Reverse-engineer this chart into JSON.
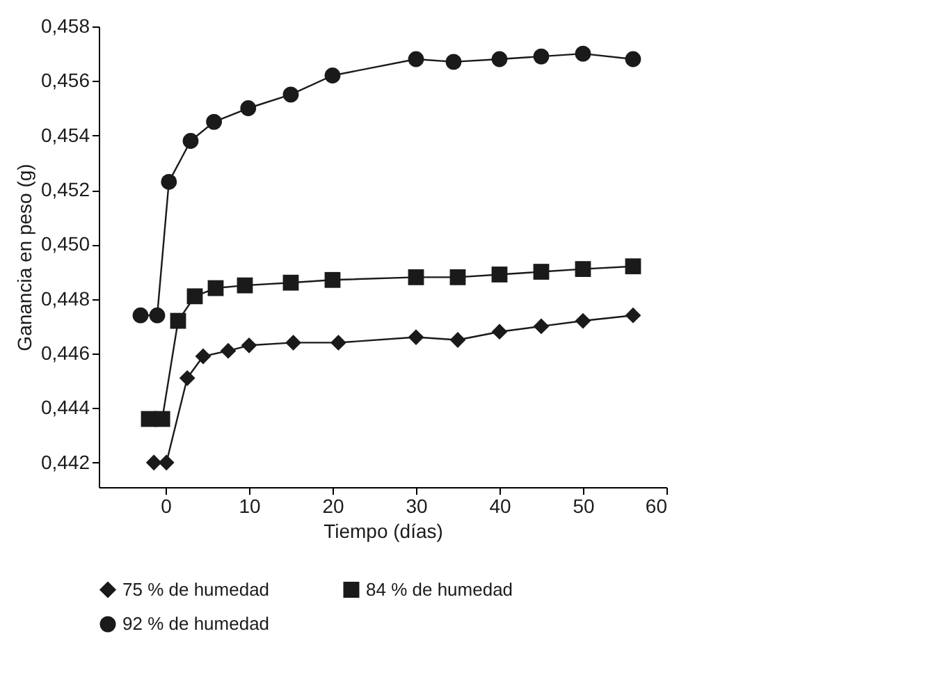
{
  "chart_data": {
    "type": "line",
    "xlabel": "Tiempo (días)",
    "ylabel": "Ganancia en peso (g)",
    "xlim": [
      -8,
      60
    ],
    "xticks": [
      0,
      10,
      20,
      30,
      40,
      50,
      60
    ],
    "ylim": [
      0.4411,
      0.458
    ],
    "yticks": [
      {
        "value": 0.442,
        "label": "0,442"
      },
      {
        "value": 0.444,
        "label": "0,444"
      },
      {
        "value": 0.446,
        "label": "0,446"
      },
      {
        "value": 0.448,
        "label": "0,448"
      },
      {
        "value": 0.45,
        "label": "0,450"
      },
      {
        "value": 0.452,
        "label": "0,452"
      },
      {
        "value": 0.454,
        "label": "0,454"
      },
      {
        "value": 0.456,
        "label": "0,456"
      },
      {
        "value": 0.458,
        "label": "0,458"
      }
    ],
    "grid": false,
    "legend": "bottom",
    "line_style": "solid",
    "series": [
      {
        "name": "75 % de humedad",
        "color": "#1a1a1a",
        "marker": "diamond",
        "x": [
          -1.4,
          0.1,
          2.6,
          4.5,
          7.5,
          10,
          15.3,
          20.7,
          30,
          35,
          40,
          45,
          50,
          56
        ],
        "values": [
          0.442,
          0.442,
          0.4451,
          0.4459,
          0.4461,
          0.4463,
          0.4464,
          0.4464,
          0.4466,
          0.4465,
          0.4468,
          0.447,
          0.4472,
          0.4474
        ]
      },
      {
        "name": "84 % de humedad",
        "color": "#1a1a1a",
        "marker": "square",
        "x": [
          -2,
          -0.4,
          1.5,
          3.5,
          6,
          9.5,
          15,
          20,
          30,
          35,
          40,
          45,
          50,
          56
        ],
        "values": [
          0.4436,
          0.4436,
          0.4472,
          0.4481,
          0.4484,
          0.4485,
          0.4486,
          0.4487,
          0.4488,
          0.4488,
          0.4489,
          0.449,
          0.4491,
          0.4492
        ]
      },
      {
        "name": "92 % de humedad",
        "color": "#1a1a1a",
        "marker": "circle",
        "x": [
          -3,
          -1,
          0.4,
          3,
          5.8,
          9.9,
          15,
          20,
          30,
          34.5,
          40,
          45,
          50,
          56
        ],
        "values": [
          0.4474,
          0.4474,
          0.4523,
          0.4538,
          0.4545,
          0.455,
          0.4555,
          0.4562,
          0.4568,
          0.4567,
          0.4568,
          0.4569,
          0.457,
          0.4568
        ]
      }
    ]
  }
}
